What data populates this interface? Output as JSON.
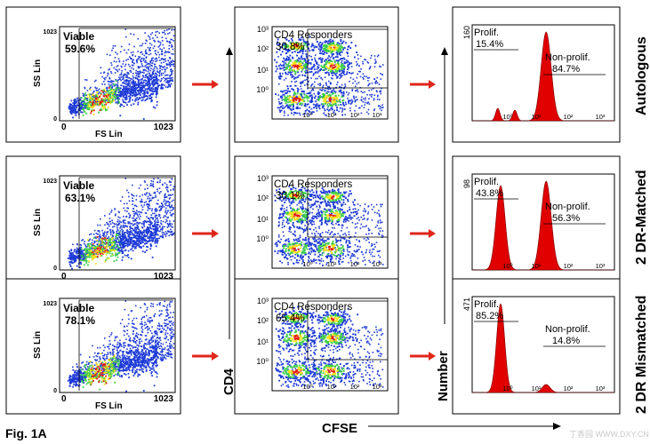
{
  "figure": {
    "label": "Fig. 1A",
    "x_axis_label": "CFSE",
    "y_axis_label_cd4": "CD4",
    "y_axis_label_number": "Number",
    "watermark": "丁香园 WWW.DXY.CN"
  },
  "colors": {
    "arrow": "#e0261b",
    "histogram_fill": "#e00000",
    "density_low": "#1f3bd6",
    "density_mid": "#3fcf4a",
    "density_high": "#f2e21a",
    "density_peak": "#e51b12"
  },
  "row_labels": [
    "Autologous",
    "2 DR-Matched",
    "2 DR Mismatched"
  ],
  "chart_data": [
    {
      "type": "scatter",
      "panel": "viability",
      "row": "Autologous",
      "xlabel": "FS Lin",
      "ylabel": "SS Lin",
      "x_ticks": [
        "0",
        "1023"
      ],
      "y_ticks": [
        "1023",
        "0"
      ],
      "xlim": [
        0,
        1023
      ],
      "ylim": [
        0,
        1023
      ],
      "gate_label": "Viable",
      "gate_percent": "59.6%"
    },
    {
      "type": "scatter",
      "panel": "cd4-vs-cfse",
      "row": "Autologous",
      "xlabel": "CFSE",
      "ylabel": "CD4",
      "x_ticks": [
        "10⁰",
        "10¹",
        "10²",
        "10³"
      ],
      "y_ticks": [
        "10³",
        "10²",
        "10¹",
        "10⁰"
      ],
      "gate_label": "CD4 Responders",
      "gate_percent": "30.8%"
    },
    {
      "type": "area",
      "panel": "proliferation-histogram",
      "row": "Autologous",
      "y_max_label": "160",
      "x_ticks": [
        "10⁰",
        "10¹",
        "10²",
        "10³"
      ],
      "prolif_label": "Prolif.",
      "prolif_percent": "15.4%",
      "nonprolif_label": "Non-prolif.",
      "nonprolif_percent": "84.7%",
      "peaks": [
        {
          "center": 0.18,
          "width": 0.022,
          "height": 0.14
        },
        {
          "center": 0.3,
          "width": 0.022,
          "height": 0.12
        },
        {
          "center": 0.52,
          "width": 0.05,
          "height": 1.0
        }
      ]
    },
    {
      "type": "scatter",
      "panel": "viability",
      "row": "2 DR-Matched",
      "xlabel": "FS Lin",
      "ylabel": "SS Lin",
      "x_ticks": [
        "0",
        "1023"
      ],
      "y_ticks": [
        "1023",
        "0"
      ],
      "xlim": [
        0,
        1023
      ],
      "ylim": [
        0,
        1023
      ],
      "gate_label": "Viable",
      "gate_percent": "63.1%"
    },
    {
      "type": "scatter",
      "panel": "cd4-vs-cfse",
      "row": "2 DR-Matched",
      "xlabel": "CFSE",
      "ylabel": "CD4",
      "x_ticks": [
        "10⁰",
        "10¹",
        "10²",
        "10³"
      ],
      "y_ticks": [
        "10³",
        "10²",
        "10¹",
        "10⁰"
      ],
      "gate_label": "CD4 Responders",
      "gate_percent": "30.1%"
    },
    {
      "type": "area",
      "panel": "proliferation-histogram",
      "row": "2 DR-Matched",
      "y_max_label": "98",
      "x_ticks": [
        "10⁰",
        "10¹",
        "10²",
        "10³"
      ],
      "prolif_label": "Prolif.",
      "prolif_percent": "43.8%",
      "nonprolif_label": "Non-prolif.",
      "nonprolif_percent": "56.3%",
      "peaks": [
        {
          "center": 0.2,
          "width": 0.045,
          "height": 0.95
        },
        {
          "center": 0.52,
          "width": 0.05,
          "height": 1.0
        }
      ]
    },
    {
      "type": "scatter",
      "panel": "viability",
      "row": "2 DR Mismatched",
      "xlabel": "FS Lin",
      "ylabel": "SS Lin",
      "x_ticks": [
        "0",
        "1023"
      ],
      "y_ticks": [
        "1023",
        "0"
      ],
      "xlim": [
        0,
        1023
      ],
      "ylim": [
        0,
        1023
      ],
      "gate_label": "Viable",
      "gate_percent": "78.1%"
    },
    {
      "type": "scatter",
      "panel": "cd4-vs-cfse",
      "row": "2 DR Mismatched",
      "xlabel": "CFSE",
      "ylabel": "CD4",
      "x_ticks": [
        "10⁰",
        "10¹",
        "10²",
        "10³"
      ],
      "y_ticks": [
        "10³",
        "10²",
        "10¹",
        "10⁰"
      ],
      "gate_label": "CD4 Responders",
      "gate_percent": "65.4%"
    },
    {
      "type": "area",
      "panel": "proliferation-histogram",
      "row": "2 DR Mismatched",
      "y_max_label": "471",
      "x_ticks": [
        "10⁰",
        "10¹",
        "10²",
        "10³"
      ],
      "prolif_label": "Prolif.",
      "prolif_percent": "85.2%",
      "nonprolif_label": "Non-prolif.",
      "nonprolif_percent": "14.8%",
      "peaks": [
        {
          "center": 0.2,
          "width": 0.04,
          "height": 1.0
        },
        {
          "center": 0.52,
          "width": 0.04,
          "height": 0.09
        }
      ]
    }
  ]
}
